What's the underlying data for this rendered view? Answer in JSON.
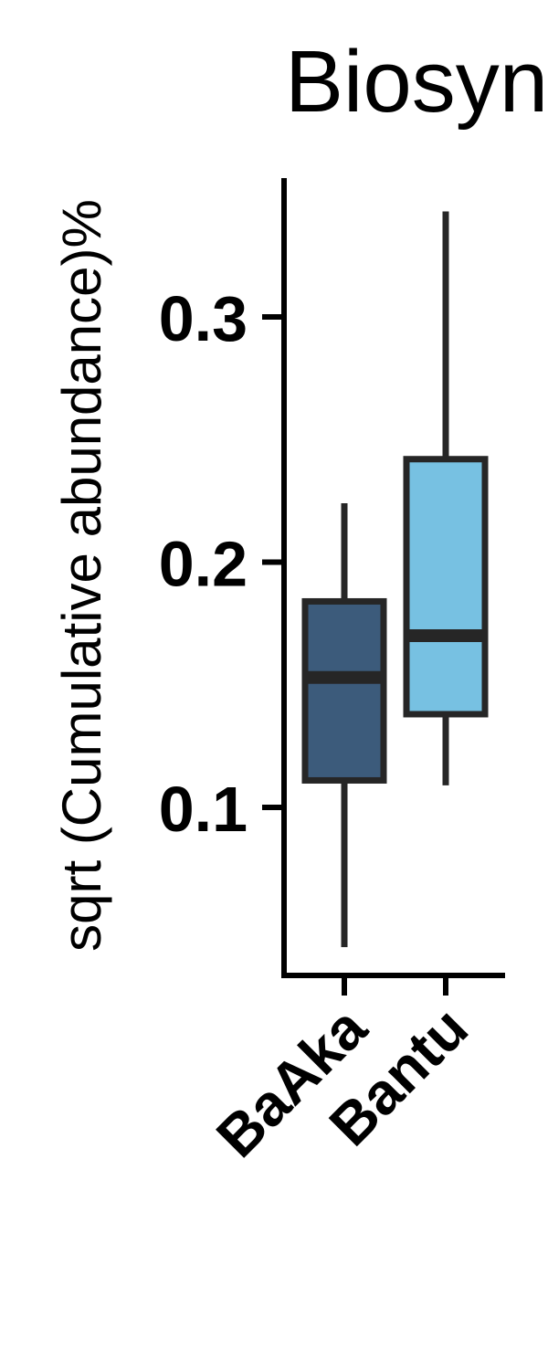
{
  "chart_data": {
    "type": "box",
    "title": "Biosyn",
    "ylabel": "sqrt (Cumulative abundance)%",
    "xlabel": "",
    "ylim": [
      0.035,
      0.36
    ],
    "yticks": [
      0.1,
      0.2,
      0.3
    ],
    "ytick_labels": [
      "0.1",
      "0.2",
      "0.3"
    ],
    "categories": [
      "BaAka",
      "Bantu"
    ],
    "boxes": [
      {
        "category": "BaAka",
        "whisker_low": 0.043,
        "q1": 0.111,
        "median": 0.153,
        "q3": 0.184,
        "whisker_high": 0.224,
        "color": "#3C5B7B"
      },
      {
        "category": "Bantu",
        "whisker_low": 0.109,
        "q1": 0.138,
        "median": 0.17,
        "q3": 0.242,
        "whisker_high": 0.343,
        "color": "#77C1E2"
      }
    ],
    "grid": false,
    "legend": "none"
  }
}
